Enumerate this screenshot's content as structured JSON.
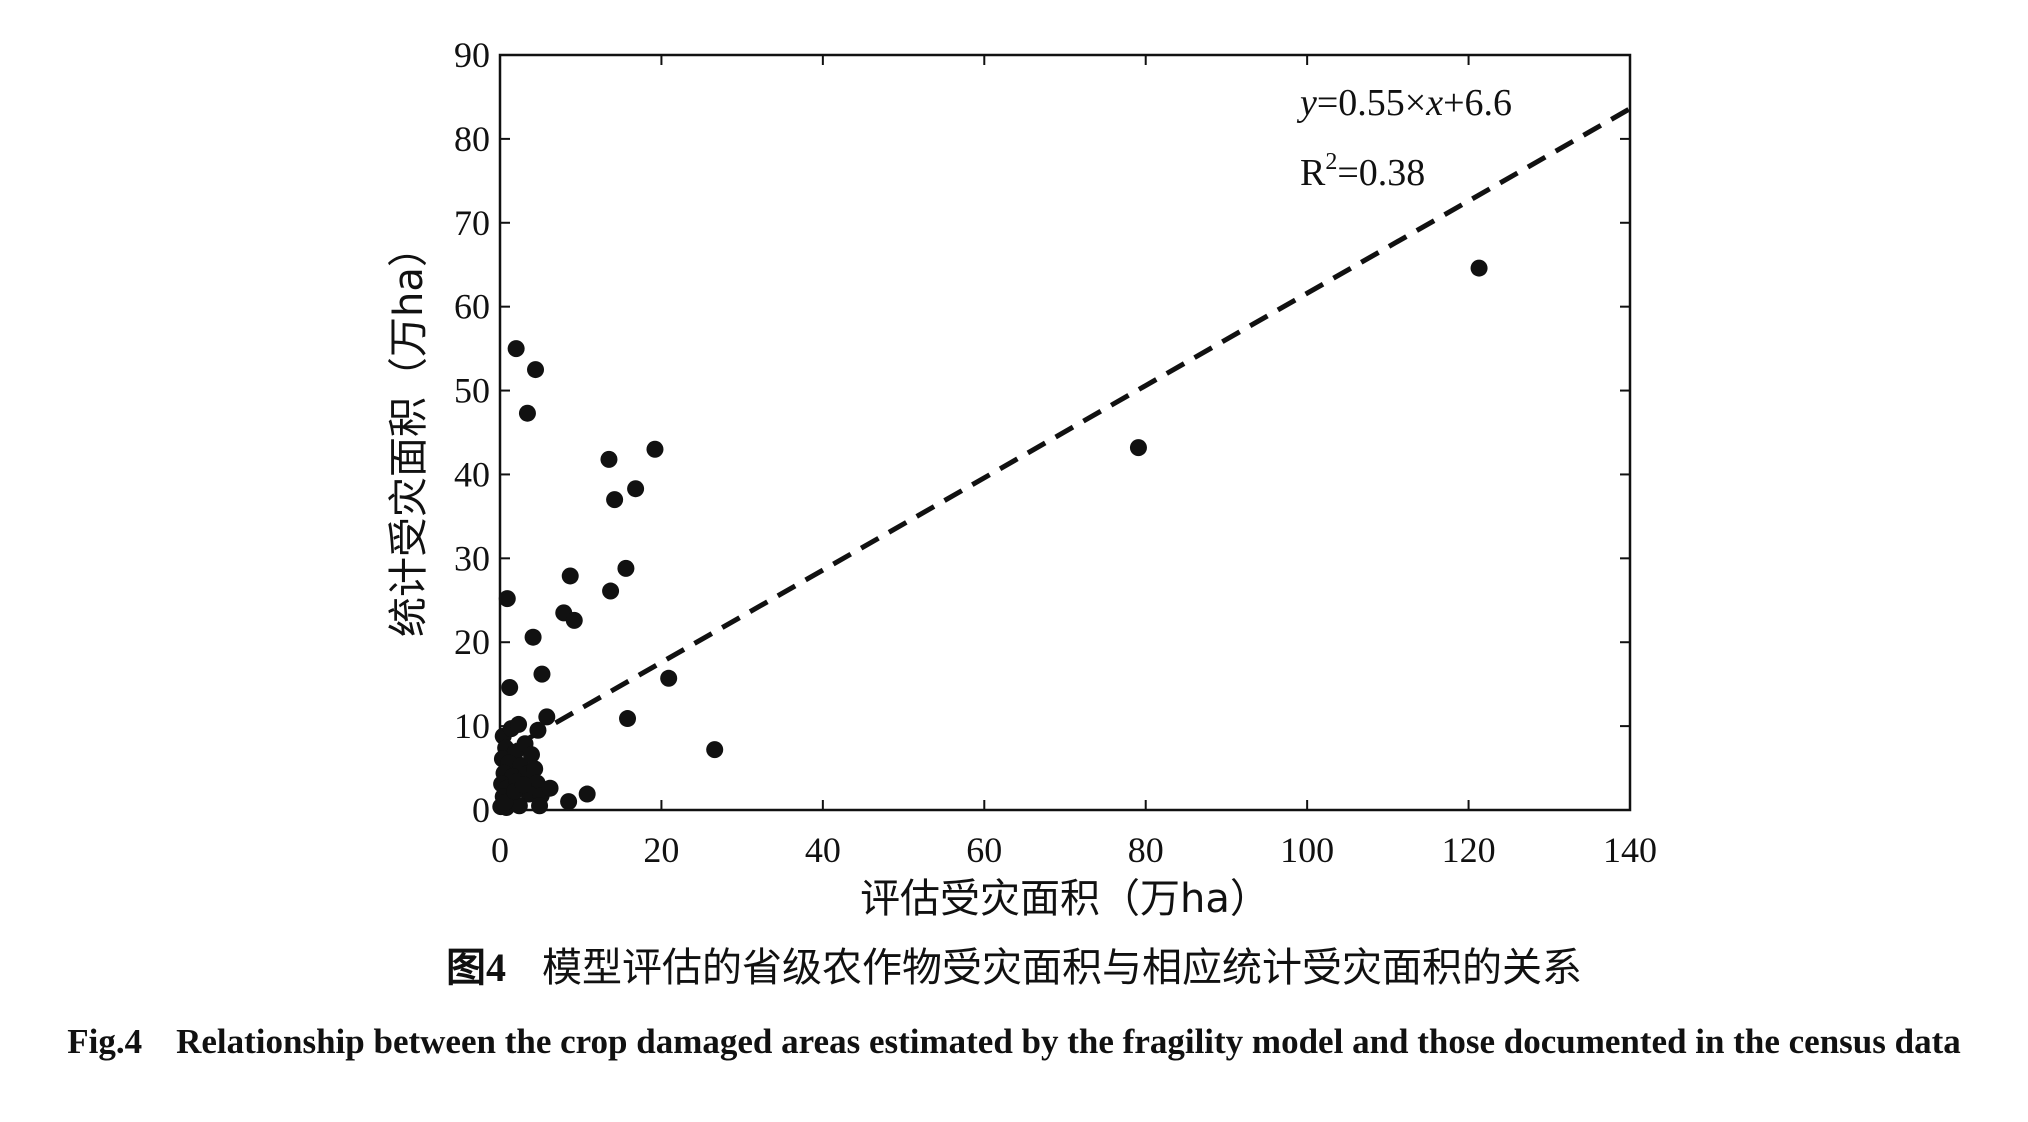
{
  "chart_data": {
    "type": "scatter",
    "xlabel": "评估受灾面积（万ha）",
    "ylabel": "统计受灾面积（万ha）",
    "xlim": [
      0,
      140
    ],
    "ylim": [
      0,
      90
    ],
    "x_ticks": [
      "0",
      "20",
      "40",
      "60",
      "80",
      "100",
      "120",
      "140"
    ],
    "y_ticks": [
      "0",
      "10",
      "20",
      "30",
      "40",
      "50",
      "60",
      "70",
      "80",
      "90"
    ],
    "grid": false,
    "legend": "none",
    "fit_line": {
      "slope": 0.55,
      "intercept": 6.6,
      "style": "dashed",
      "x_range": [
        0,
        140
      ]
    },
    "equation": {
      "y": "y",
      "rest1": "=0.55×",
      "x": "x",
      "rest2": "+6.6"
    },
    "r2": {
      "base": "R",
      "sup": "2",
      "rest": "=0.38"
    },
    "points": [
      {
        "x": 2.0,
        "y": 55.0
      },
      {
        "x": 4.4,
        "y": 52.5
      },
      {
        "x": 3.4,
        "y": 47.3
      },
      {
        "x": 13.5,
        "y": 41.8
      },
      {
        "x": 19.2,
        "y": 43.0
      },
      {
        "x": 14.2,
        "y": 37.0
      },
      {
        "x": 16.8,
        "y": 38.3
      },
      {
        "x": 15.6,
        "y": 28.8
      },
      {
        "x": 8.7,
        "y": 27.9
      },
      {
        "x": 13.7,
        "y": 26.1
      },
      {
        "x": 7.9,
        "y": 23.5
      },
      {
        "x": 9.2,
        "y": 22.6
      },
      {
        "x": 0.9,
        "y": 25.2
      },
      {
        "x": 4.1,
        "y": 20.6
      },
      {
        "x": 5.2,
        "y": 16.2
      },
      {
        "x": 1.2,
        "y": 14.6
      },
      {
        "x": 20.9,
        "y": 15.7
      },
      {
        "x": 15.8,
        "y": 10.9
      },
      {
        "x": 5.8,
        "y": 11.1
      },
      {
        "x": 4.7,
        "y": 9.5
      },
      {
        "x": 26.6,
        "y": 7.2
      },
      {
        "x": 121.3,
        "y": 64.6
      },
      {
        "x": 79.1,
        "y": 43.2
      },
      {
        "x": 0.4,
        "y": 8.8
      },
      {
        "x": 1.4,
        "y": 9.7
      },
      {
        "x": 2.3,
        "y": 10.2
      },
      {
        "x": 0.7,
        "y": 7.4
      },
      {
        "x": 1.9,
        "y": 6.9
      },
      {
        "x": 3.1,
        "y": 7.9
      },
      {
        "x": 0.3,
        "y": 6.1
      },
      {
        "x": 1.1,
        "y": 5.6
      },
      {
        "x": 2.6,
        "y": 5.3
      },
      {
        "x": 3.9,
        "y": 6.6
      },
      {
        "x": 0.5,
        "y": 4.4
      },
      {
        "x": 1.6,
        "y": 4.0
      },
      {
        "x": 3.3,
        "y": 4.3
      },
      {
        "x": 4.3,
        "y": 4.9
      },
      {
        "x": 0.2,
        "y": 3.1
      },
      {
        "x": 0.9,
        "y": 2.6
      },
      {
        "x": 2.1,
        "y": 3.4
      },
      {
        "x": 4.6,
        "y": 3.2
      },
      {
        "x": 0.4,
        "y": 1.6
      },
      {
        "x": 1.5,
        "y": 1.3
      },
      {
        "x": 3.6,
        "y": 1.9
      },
      {
        "x": 5.1,
        "y": 1.7
      },
      {
        "x": 6.2,
        "y": 2.6
      },
      {
        "x": 10.8,
        "y": 1.9
      },
      {
        "x": 0.1,
        "y": 0.4
      },
      {
        "x": 0.8,
        "y": 0.3
      },
      {
        "x": 2.4,
        "y": 0.5
      },
      {
        "x": 4.9,
        "y": 0.5
      },
      {
        "x": 8.5,
        "y": 1.0
      },
      {
        "x": 0.6,
        "y": 0.9
      },
      {
        "x": 1.8,
        "y": 2.2
      },
      {
        "x": 2.9,
        "y": 3.0
      }
    ]
  },
  "caption_cn": {
    "fig_num": "图4",
    "text": "模型评估的省级农作物受灾面积与相应统计受灾面积的关系"
  },
  "caption_en": {
    "fig_num": "Fig.4",
    "text": "Relationship between the crop damaged areas estimated by the fragility model and those documented in the census data"
  }
}
